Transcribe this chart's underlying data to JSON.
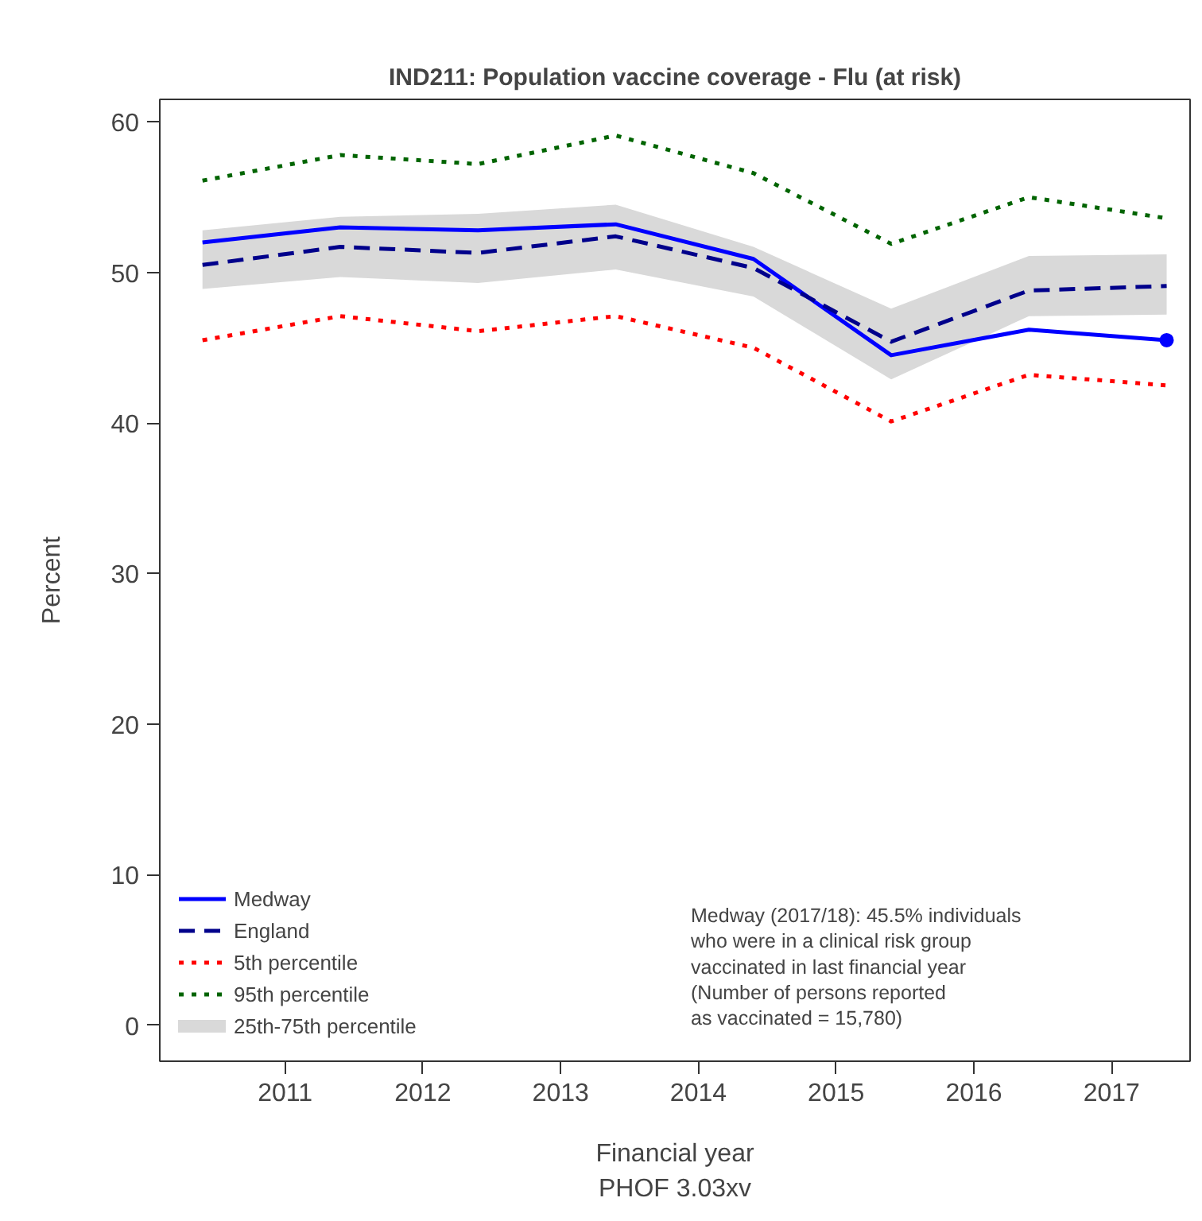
{
  "chart_data": {
    "type": "line",
    "title": "IND211: Population vaccine coverage - Flu (at risk)",
    "xlabel": "Financial year",
    "ylabel": "Percent",
    "x": [
      2010.4,
      2011.4,
      2012.4,
      2013.4,
      2014.4,
      2015.4,
      2016.4,
      2017.4
    ],
    "series": [
      {
        "name": "25th-75th percentile",
        "type": "area",
        "color": "#d9d9d9",
        "lower": [
          48.9,
          49.7,
          49.3,
          50.2,
          48.4,
          42.9,
          47.1,
          47.2
        ],
        "upper": [
          52.8,
          53.7,
          53.9,
          54.5,
          51.7,
          47.6,
          51.1,
          51.2
        ],
        "values": [
          null,
          null,
          null,
          null,
          null,
          null,
          null,
          null
        ]
      },
      {
        "name": "Medway",
        "color": "#0000ff",
        "line_style": "solid",
        "values": [
          52.0,
          53.0,
          52.8,
          53.2,
          50.9,
          44.5,
          46.2,
          45.5
        ]
      },
      {
        "name": "England",
        "color": "#00008b",
        "line_style": "dashed",
        "values": [
          50.5,
          51.7,
          51.3,
          52.4,
          50.3,
          45.4,
          48.8,
          49.1
        ]
      },
      {
        "name": "5th percentile",
        "color": "#ff0000",
        "line_style": "dotted",
        "values": [
          45.5,
          47.1,
          46.1,
          47.1,
          45.0,
          40.1,
          43.2,
          42.5
        ]
      },
      {
        "name": "95th percentile",
        "color": "#006400",
        "line_style": "dotted",
        "values": [
          56.1,
          57.8,
          57.2,
          59.1,
          56.6,
          51.9,
          55.0,
          53.6
        ]
      },
      {
        "type": "scatter",
        "color": "#0000ff",
        "marker": "circle",
        "x": [
          2017.4
        ],
        "values": [
          45.5
        ]
      }
    ],
    "xlim": [
      2010.09,
      2017.57
    ],
    "ylim": [
      -2.4,
      61.5
    ],
    "xticks": [
      2011,
      2012,
      2013,
      2014,
      2015,
      2016,
      2017
    ],
    "yticks": [
      0,
      10,
      20,
      30,
      40,
      50,
      60
    ],
    "grid": false,
    "legend": "bottom left",
    "annotations": [
      "Medway (2017/18): 45.5% individuals\nwho were in a clinical risk group\nvaccinated in last financial year\n(Number of persons reported\n as vaccinated = 15,780)",
      "PHOF 3.03xv"
    ]
  }
}
